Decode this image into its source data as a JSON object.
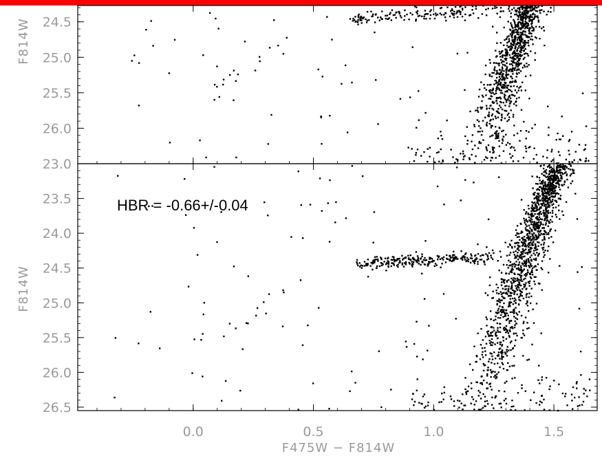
{
  "colors": {
    "top_bar": "#ff0000",
    "points": "#000000",
    "tick_labels": "#9a9a9a",
    "frame": "#000000"
  },
  "chart_data": [
    {
      "type": "scatter",
      "panel": "top",
      "xlabel": "",
      "ylabel": "F814W",
      "xlim": [
        -0.48,
        1.68
      ],
      "ylim": [
        24.27,
        26.5
      ],
      "y_inverted": true,
      "yticks": [
        "24.5",
        "25.0",
        "25.5",
        "26.0"
      ],
      "features": {
        "horizontal_branch": {
          "x_range": [
            0.65,
            1.35
          ],
          "y_center": 24.45
        },
        "red_giant_branch": {
          "x_at_faint": 1.22,
          "x_at_bright": 1.4,
          "y_range": [
            24.27,
            26.5
          ]
        },
        "field_stars": 60
      }
    },
    {
      "type": "scatter",
      "panel": "bottom",
      "xlabel": "F475W − F814W",
      "ylabel": "F814W",
      "xlim": [
        -0.48,
        1.68
      ],
      "ylim": [
        23.0,
        26.55
      ],
      "y_inverted": true,
      "xticks": [
        "0.0",
        "0.5",
        "1.0",
        "1.5"
      ],
      "yticks": [
        "23.0",
        "23.5",
        "24.0",
        "24.5",
        "25.0",
        "25.5",
        "26.0",
        "26.5"
      ],
      "annotation": "HBR = -0.66+/-0.04",
      "features": {
        "horizontal_branch": {
          "x_range": [
            0.68,
            1.25
          ],
          "y_center": 24.45
        },
        "red_giant_branch": {
          "x_at_faint": 1.22,
          "x_at_bright": 1.52,
          "y_range": [
            23.0,
            26.55
          ]
        },
        "field_stars": 110
      }
    }
  ]
}
